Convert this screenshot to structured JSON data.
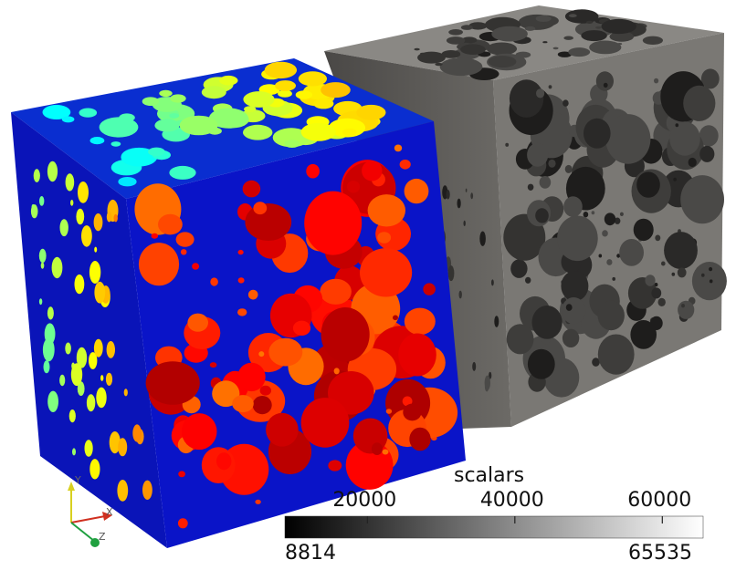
{
  "scene": {
    "colors": {
      "background": "#ffffff",
      "segmented_matrix": "#0a14c8",
      "segmented_top_matrix": "#0a2ed0",
      "grayscale_matrix": "#7a7874"
    },
    "objects": [
      {
        "name": "segmented-cube",
        "coloring": "jet colormap (blue to red) segmentation"
      },
      {
        "name": "grayscale-cube",
        "coloring": "grayscale CT volume with dark pores"
      }
    ]
  },
  "colorbar": {
    "title": "scalars",
    "range": [
      8814,
      65535
    ],
    "range_labels": {
      "min": "8814",
      "max": "65535"
    },
    "ticks": [
      {
        "value": 20000,
        "label": "20000"
      },
      {
        "value": 40000,
        "label": "40000"
      },
      {
        "value": 60000,
        "label": "60000"
      }
    ],
    "gradient": [
      "#000000",
      "#ffffff"
    ]
  },
  "axes_triad": {
    "y": {
      "label": "Y",
      "color": "#d8d020"
    },
    "x": {
      "label": "X",
      "color": "#d03020"
    },
    "z": {
      "label": "Z",
      "color": "#20a040"
    }
  }
}
